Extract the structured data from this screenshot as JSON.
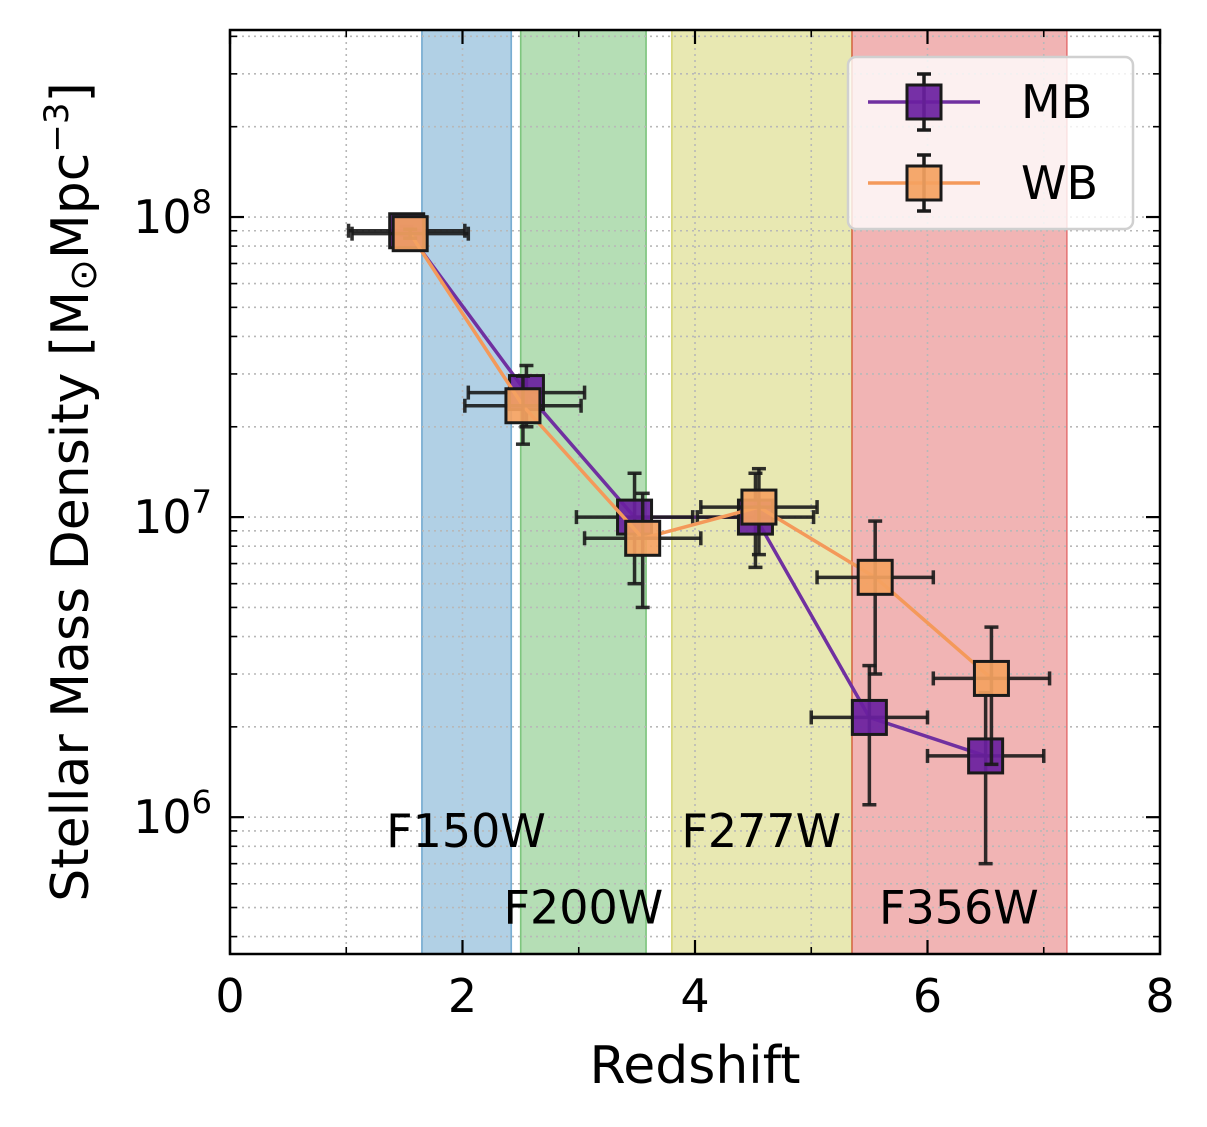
{
  "chart_data": {
    "type": "scatter",
    "xlabel": "Redshift",
    "ylabel": "Stellar Mass Density [M⊙Mpc⁻³]",
    "ylabel_text": "Stellar Mass Density [M",
    "ylabel_sub": "⊙",
    "ylabel_unit": "Mpc",
    "ylabel_exp": "−3",
    "ylabel_close": "]",
    "xlim": [
      0,
      8
    ],
    "ylim": [
      350000,
      420000000
    ],
    "yscale": "log",
    "grid": true,
    "legend_position": "top-right",
    "x_ticks": [
      {
        "value": 0,
        "label": "0"
      },
      {
        "value": 2,
        "label": "2"
      },
      {
        "value": 4,
        "label": "4"
      },
      {
        "value": 6,
        "label": "6"
      },
      {
        "value": 8,
        "label": "8"
      }
    ],
    "y_ticks": [
      {
        "value": 1000000,
        "base": "10",
        "exp": "6"
      },
      {
        "value": 10000000,
        "base": "10",
        "exp": "7"
      },
      {
        "value": 100000000,
        "base": "10",
        "exp": "8"
      }
    ],
    "bands": [
      {
        "name": "F150W",
        "x0": 1.65,
        "x1": 2.42,
        "color": "#1f77b4",
        "label_x": 2.03,
        "label_y": 900000
      },
      {
        "name": "F200W",
        "x0": 2.5,
        "x1": 3.58,
        "color": "#2ca02c",
        "label_x": 3.04,
        "label_y": 500000
      },
      {
        "name": "F277W",
        "x0": 3.8,
        "x1": 5.35,
        "color": "#bcbd22",
        "label_x": 4.57,
        "label_y": 900000
      },
      {
        "name": "F356W",
        "x0": 5.35,
        "x1": 7.2,
        "color": "#d62728",
        "label_x": 6.27,
        "label_y": 500000
      }
    ],
    "series": [
      {
        "name": "MB",
        "color": "#6a1fa0",
        "line_color": "#7030a0",
        "points": [
          {
            "x": 1.52,
            "y": 90000000,
            "xerr": [
              0.5,
              0.5
            ],
            "yerr": [
              87000000,
              93000000
            ]
          },
          {
            "x": 2.55,
            "y": 26000000,
            "xerr": [
              0.5,
              0.5
            ],
            "yerr": [
              20000000,
              32000000
            ]
          },
          {
            "x": 3.48,
            "y": 10000000,
            "xerr": [
              0.5,
              0.5
            ],
            "yerr": [
              6000000,
              14000000
            ]
          },
          {
            "x": 4.52,
            "y": 10000000,
            "xerr": [
              0.5,
              0.5
            ],
            "yerr": [
              6800000,
              14000000
            ]
          },
          {
            "x": 5.5,
            "y": 2150000,
            "xerr": [
              0.5,
              0.5
            ],
            "yerr": [
              1100000,
              3200000
            ]
          },
          {
            "x": 6.5,
            "y": 1600000,
            "xerr": [
              0.5,
              0.5
            ],
            "yerr": [
              700000,
              2600000
            ]
          }
        ]
      },
      {
        "name": "WB",
        "color": "#f4a261",
        "line_color": "#f4995a",
        "points": [
          {
            "x": 1.55,
            "y": 88000000,
            "xerr": [
              0.5,
              0.5
            ],
            "yerr": [
              85000000,
              91000000
            ]
          },
          {
            "x": 2.52,
            "y": 23500000,
            "xerr": [
              0.5,
              0.5
            ],
            "yerr": [
              17500000,
              29500000
            ]
          },
          {
            "x": 3.55,
            "y": 8500000,
            "xerr": [
              0.5,
              0.5
            ],
            "yerr": [
              5000000,
              12000000
            ]
          },
          {
            "x": 4.55,
            "y": 10800000,
            "xerr": [
              0.5,
              0.5
            ],
            "yerr": [
              7500000,
              14500000
            ]
          },
          {
            "x": 5.55,
            "y": 6300000,
            "xerr": [
              0.5,
              0.5
            ],
            "yerr": [
              3000000,
              9700000
            ]
          },
          {
            "x": 6.55,
            "y": 2900000,
            "xerr": [
              0.5,
              0.5
            ],
            "yerr": [
              1500000,
              4300000
            ]
          }
        ]
      }
    ]
  }
}
